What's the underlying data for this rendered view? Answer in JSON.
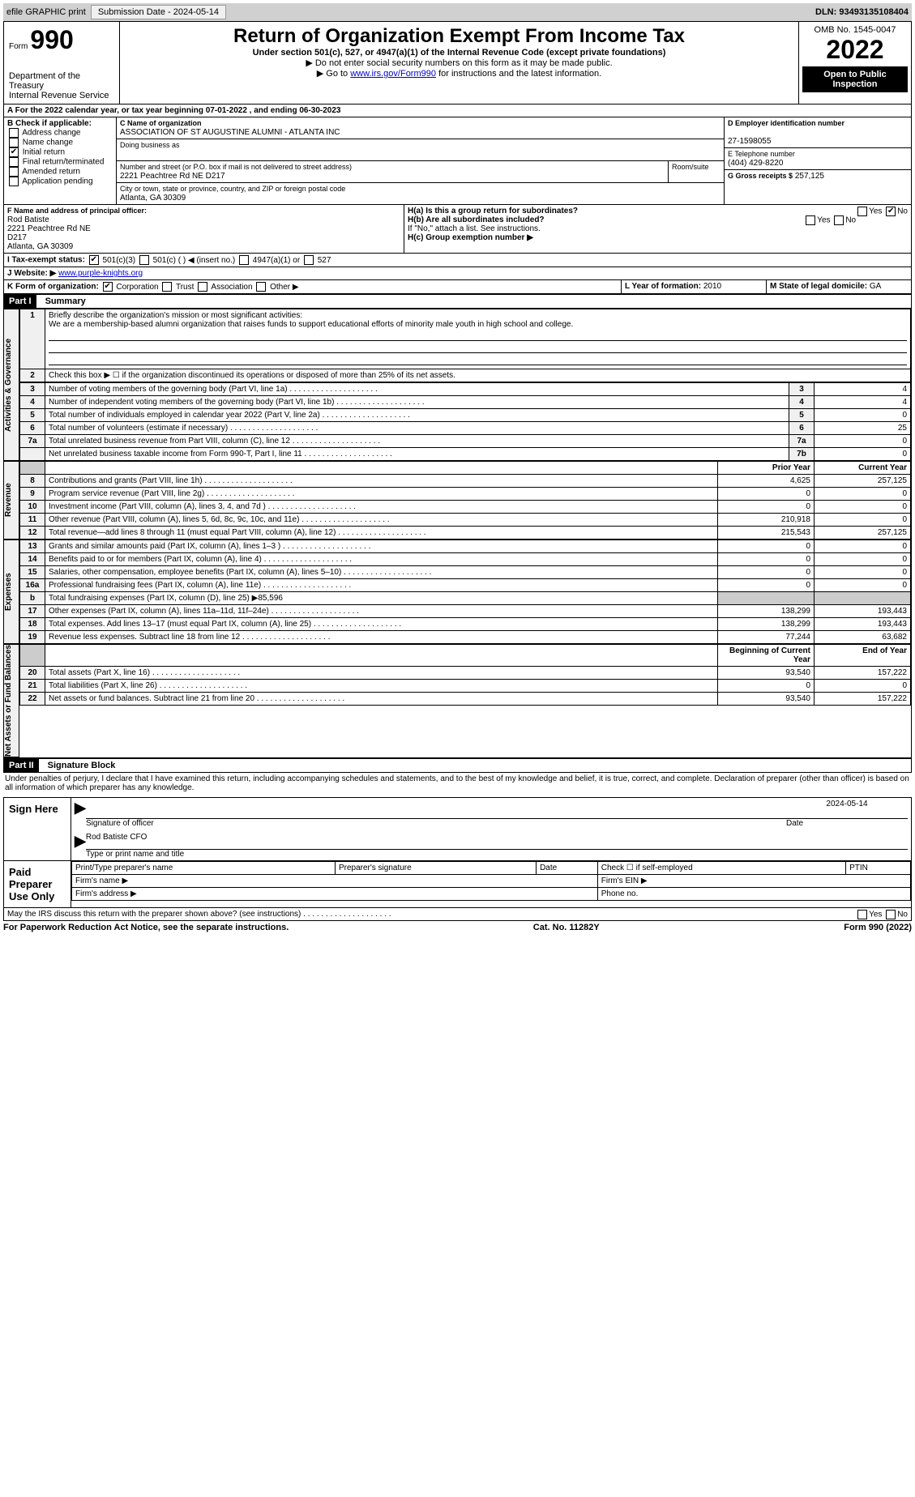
{
  "top_bar": {
    "efile": "efile GRAPHIC print",
    "submission_btn": "Submission Date - 2024-05-14",
    "dln": "DLN: 93493135108404"
  },
  "header": {
    "form_label": "Form",
    "form_num": "990",
    "dept": "Department of the Treasury",
    "irs": "Internal Revenue Service",
    "title": "Return of Organization Exempt From Income Tax",
    "subtitle": "Under section 501(c), 527, or 4947(a)(1) of the Internal Revenue Code (except private foundations)",
    "note1": "▶ Do not enter social security numbers on this form as it may be made public.",
    "note2": "▶ Go to ",
    "note2_link": "www.irs.gov/Form990",
    "note2_suffix": " for instructions and the latest information.",
    "omb": "OMB No. 1545-0047",
    "year": "2022",
    "open_public": "Open to Public Inspection"
  },
  "period": {
    "prefix": "A For the 2022 calendar year, or tax year beginning ",
    "start": "07-01-2022",
    "mid": " , and ending ",
    "end": "06-30-2023"
  },
  "sectionB": {
    "label": "B Check if applicable:",
    "items": [
      "Address change",
      "Name change",
      "Initial return",
      "Final return/terminated",
      "Amended return",
      "Application pending"
    ],
    "checked_index": 2
  },
  "sectionC": {
    "label": "C Name of organization",
    "name": "ASSOCIATION OF ST AUGUSTINE ALUMNI - ATLANTA INC",
    "dba_label": "Doing business as",
    "dba": "",
    "addr_label": "Number and street (or P.O. box if mail is not delivered to street address)",
    "room_label": "Room/suite",
    "street": "2221 Peachtree Rd NE D217",
    "city_label": "City or town, state or province, country, and ZIP or foreign postal code",
    "city": "Atlanta, GA  30309"
  },
  "sectionD": {
    "label": "D Employer identification number",
    "ein": "27-1598055"
  },
  "sectionE": {
    "label": "E Telephone number",
    "phone": "(404) 429-8220"
  },
  "sectionG": {
    "label": "G Gross receipts $",
    "amount": "257,125"
  },
  "sectionF": {
    "label": "F  Name and address of principal officer:",
    "name": "Rod Batiste",
    "line1": "2221 Peachtree Rd NE",
    "line2": "D217",
    "line3": "Atlanta, GA  30309"
  },
  "sectionH": {
    "a": "H(a)  Is this a group return for subordinates?",
    "a_no": true,
    "b": "H(b)  Are all subordinates included?",
    "b_note": "If \"No,\" attach a list. See instructions.",
    "c": "H(c)  Group exemption number ▶"
  },
  "sectionI": {
    "label": "I  Tax-exempt status:",
    "opts": [
      "501(c)(3)",
      "501(c) (  ) ◀ (insert no.)",
      "4947(a)(1) or",
      "527"
    ],
    "checked": 0
  },
  "sectionJ": {
    "label": "J  Website: ▶",
    "url": "www.purple-knights.org"
  },
  "sectionK": {
    "label": "K Form of organization:",
    "opts": [
      "Corporation",
      "Trust",
      "Association",
      "Other ▶"
    ],
    "checked": 0
  },
  "sectionL": {
    "label": "L Year of formation:",
    "val": "2010"
  },
  "sectionM": {
    "label": "M State of legal domicile:",
    "val": "GA"
  },
  "part1": {
    "header": "Part I",
    "title": "Summary",
    "line1_label": "Briefly describe the organization's mission or most significant activities:",
    "line1_text": "We are a membership-based alumni organization that raises funds to support educational efforts of minority male youth in high school and college.",
    "line2": "Check this box ▶ ☐ if the organization discontinued its operations or disposed of more than 25% of its net assets.",
    "rows_ag": [
      {
        "n": "3",
        "t": "Number of voting members of the governing body (Part VI, line 1a)",
        "box": "3",
        "v": "4"
      },
      {
        "n": "4",
        "t": "Number of independent voting members of the governing body (Part VI, line 1b)",
        "box": "4",
        "v": "4"
      },
      {
        "n": "5",
        "t": "Total number of individuals employed in calendar year 2022 (Part V, line 2a)",
        "box": "5",
        "v": "0"
      },
      {
        "n": "6",
        "t": "Total number of volunteers (estimate if necessary)",
        "box": "6",
        "v": "25"
      },
      {
        "n": "7a",
        "t": "Total unrelated business revenue from Part VIII, column (C), line 12",
        "box": "7a",
        "v": "0"
      },
      {
        "n": "",
        "t": "Net unrelated business taxable income from Form 990-T, Part I, line 11",
        "box": "7b",
        "v": "0"
      }
    ],
    "col_headers": [
      "Prior Year",
      "Current Year"
    ],
    "rows_rev": [
      {
        "n": "8",
        "t": "Contributions and grants (Part VIII, line 1h)",
        "p": "4,625",
        "c": "257,125"
      },
      {
        "n": "9",
        "t": "Program service revenue (Part VIII, line 2g)",
        "p": "0",
        "c": "0"
      },
      {
        "n": "10",
        "t": "Investment income (Part VIII, column (A), lines 3, 4, and 7d )",
        "p": "0",
        "c": "0"
      },
      {
        "n": "11",
        "t": "Other revenue (Part VIII, column (A), lines 5, 6d, 8c, 9c, 10c, and 11e)",
        "p": "210,918",
        "c": "0"
      },
      {
        "n": "12",
        "t": "Total revenue—add lines 8 through 11 (must equal Part VIII, column (A), line 12)",
        "p": "215,543",
        "c": "257,125"
      }
    ],
    "rows_exp": [
      {
        "n": "13",
        "t": "Grants and similar amounts paid (Part IX, column (A), lines 1–3 )",
        "p": "0",
        "c": "0"
      },
      {
        "n": "14",
        "t": "Benefits paid to or for members (Part IX, column (A), line 4)",
        "p": "0",
        "c": "0"
      },
      {
        "n": "15",
        "t": "Salaries, other compensation, employee benefits (Part IX, column (A), lines 5–10)",
        "p": "0",
        "c": "0"
      },
      {
        "n": "16a",
        "t": "Professional fundraising fees (Part IX, column (A), line 11e)",
        "p": "0",
        "c": "0"
      },
      {
        "n": "b",
        "t": "Total fundraising expenses (Part IX, column (D), line 25) ▶85,596",
        "p": "",
        "c": "",
        "shaded": true
      },
      {
        "n": "17",
        "t": "Other expenses (Part IX, column (A), lines 11a–11d, 11f–24e)",
        "p": "138,299",
        "c": "193,443"
      },
      {
        "n": "18",
        "t": "Total expenses. Add lines 13–17 (must equal Part IX, column (A), line 25)",
        "p": "138,299",
        "c": "193,443"
      },
      {
        "n": "19",
        "t": "Revenue less expenses. Subtract line 18 from line 12",
        "p": "77,244",
        "c": "63,682"
      }
    ],
    "net_headers": [
      "Beginning of Current Year",
      "End of Year"
    ],
    "rows_net": [
      {
        "n": "20",
        "t": "Total assets (Part X, line 16)",
        "p": "93,540",
        "c": "157,222"
      },
      {
        "n": "21",
        "t": "Total liabilities (Part X, line 26)",
        "p": "0",
        "c": "0"
      },
      {
        "n": "22",
        "t": "Net assets or fund balances. Subtract line 21 from line 20",
        "p": "93,540",
        "c": "157,222"
      }
    ],
    "side_labels": {
      "ag": "Activities & Governance",
      "rev": "Revenue",
      "exp": "Expenses",
      "net": "Net Assets or Fund Balances"
    }
  },
  "part2": {
    "header": "Part II",
    "title": "Signature Block",
    "declaration": "Under penalties of perjury, I declare that I have examined this return, including accompanying schedules and statements, and to the best of my knowledge and belief, it is true, correct, and complete. Declaration of preparer (other than officer) is based on all information of which preparer has any knowledge.",
    "sign_here": "Sign Here",
    "sig_officer": "Signature of officer",
    "sig_date": "2024-05-14",
    "officer_name": "Rod Batiste CFO",
    "type_print": "Type or print name and title",
    "paid": "Paid Preparer Use Only",
    "prep_cols": [
      "Print/Type preparer's name",
      "Preparer's signature",
      "Date",
      "Check ☐ if self-employed",
      "PTIN"
    ],
    "firm_name": "Firm's name  ▶",
    "firm_ein": "Firm's EIN ▶",
    "firm_addr": "Firm's address ▶",
    "phone": "Phone no.",
    "may_irs": "May the IRS discuss this return with the preparer shown above? (see instructions)"
  },
  "footer": {
    "left": "For Paperwork Reduction Act Notice, see the separate instructions.",
    "center": "Cat. No. 11282Y",
    "right": "Form 990 (2022)"
  }
}
